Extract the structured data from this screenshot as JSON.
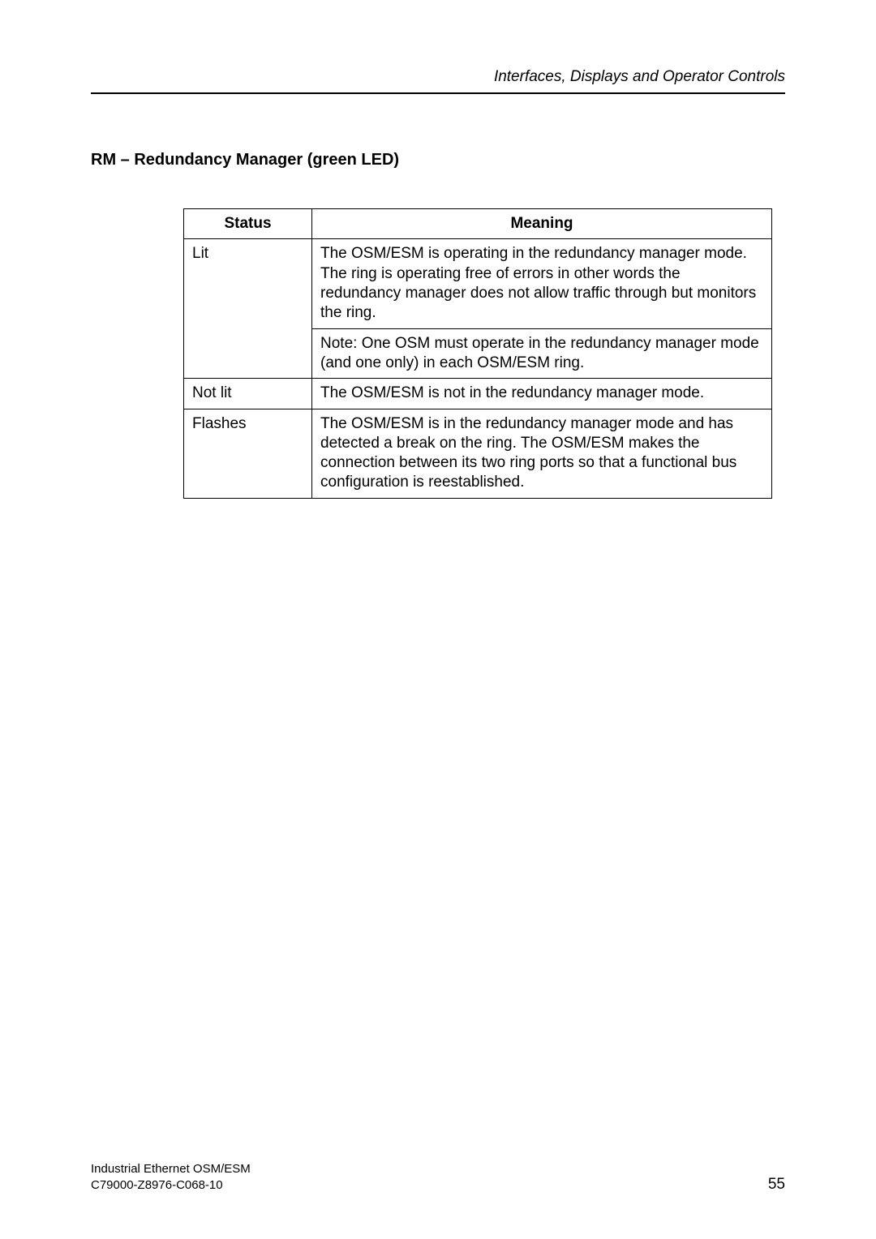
{
  "header": {
    "running_title": "Interfaces, Displays and Operator Controls"
  },
  "section": {
    "title": "RM – Redundancy Manager (green LED)"
  },
  "table": {
    "columns": [
      "Status",
      "Meaning"
    ],
    "rows": [
      {
        "status": "Lit",
        "meaning": "The OSM/ESM is operating in the redundancy manager mode. The ring is operating free of errors in other words the redundancy manager does not allow traffic through but monitors the ring.",
        "note": "Note: One OSM must operate in the redundancy manager mode (and one only) in each OSM/ESM ring."
      },
      {
        "status": "Not lit",
        "meaning": "The OSM/ESM is not in the redundancy manager mode."
      },
      {
        "status": "Flashes",
        "meaning": "The OSM/ESM is in the redundancy manager mode and has detected a break on the ring. The OSM/ESM makes the connection between its two ring ports so that a functional bus configuration is reestablished."
      }
    ]
  },
  "footer": {
    "line1": "Industrial Ethernet OSM/ESM",
    "line2": "C79000-Z8976-C068-10",
    "page": "55"
  }
}
